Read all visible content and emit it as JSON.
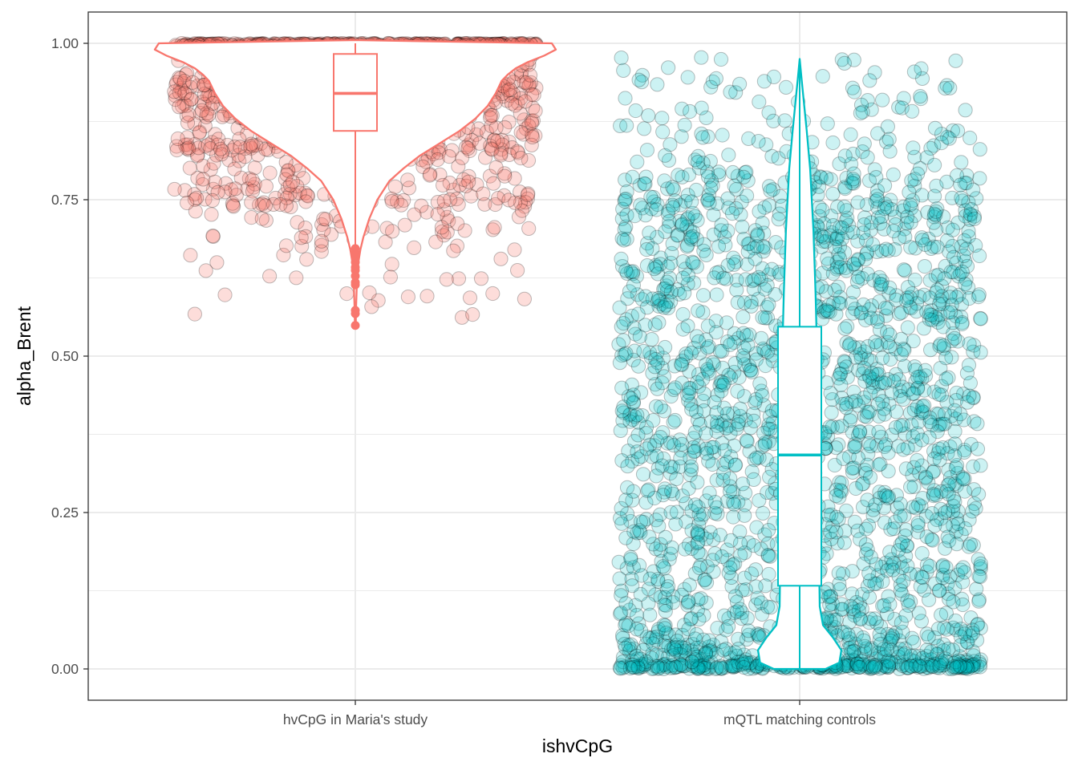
{
  "chart_data": {
    "type": "scatter",
    "subtype": "jitter points with violin and boxplot overlay",
    "title": "",
    "xlabel": "ishvCpG",
    "ylabel": "alpha_Brent",
    "ylim": [
      -0.05,
      1.05
    ],
    "y_ticks": [
      "0.00",
      "0.25",
      "0.50",
      "0.75",
      "1.00"
    ],
    "categories": [
      "hvCpG in Maria's study",
      "mQTL matching controls"
    ],
    "grid": true,
    "legend": "none",
    "series": [
      {
        "category": "hvCpG in Maria's study",
        "color": "#F8766D",
        "point_fill": "#F8766D",
        "point_alpha": 0.25,
        "box": {
          "q1": 0.86,
          "median": 0.92,
          "q3": 0.983,
          "whisker_low": 0.676,
          "whisker_high": 1.0
        },
        "outliers": [
          0.672,
          0.665,
          0.658,
          0.65,
          0.642,
          0.637,
          0.628,
          0.618,
          0.614,
          0.573,
          0.568,
          0.549
        ],
        "violin_profile": [
          [
            0.549,
            0.002
          ],
          [
            0.58,
            0.004
          ],
          [
            0.62,
            0.008
          ],
          [
            0.65,
            0.015
          ],
          [
            0.67,
            0.025
          ],
          [
            0.69,
            0.04
          ],
          [
            0.72,
            0.07
          ],
          [
            0.75,
            0.11
          ],
          [
            0.78,
            0.17
          ],
          [
            0.8,
            0.24
          ],
          [
            0.82,
            0.32
          ],
          [
            0.84,
            0.42
          ],
          [
            0.86,
            0.52
          ],
          [
            0.88,
            0.6
          ],
          [
            0.9,
            0.66
          ],
          [
            0.92,
            0.7
          ],
          [
            0.94,
            0.73
          ],
          [
            0.95,
            0.76
          ],
          [
            0.96,
            0.8
          ],
          [
            0.97,
            0.86
          ],
          [
            0.98,
            0.94
          ],
          [
            0.99,
            1.0
          ],
          [
            1.0,
            0.98
          ],
          [
            1.005,
            0.02
          ]
        ]
      },
      {
        "category": "mQTL matching controls",
        "color": "#00BFC4",
        "point_fill": "#00BFC4",
        "point_alpha": 0.2,
        "box": {
          "q1": 0.133,
          "median": 0.342,
          "q3": 0.547,
          "whisker_low": 0.0,
          "whisker_high": 0.975
        },
        "outliers": [],
        "violin_profile": [
          [
            0.0,
            0.62
          ],
          [
            0.01,
            0.95
          ],
          [
            0.03,
            1.0
          ],
          [
            0.05,
            0.8
          ],
          [
            0.07,
            0.56
          ],
          [
            0.1,
            0.48
          ],
          [
            0.2,
            0.46
          ],
          [
            0.3,
            0.45
          ],
          [
            0.4,
            0.44
          ],
          [
            0.5,
            0.42
          ],
          [
            0.6,
            0.38
          ],
          [
            0.7,
            0.33
          ],
          [
            0.8,
            0.25
          ],
          [
            0.86,
            0.17
          ],
          [
            0.9,
            0.11
          ],
          [
            0.94,
            0.05
          ],
          [
            0.975,
            0.0
          ]
        ]
      }
    ]
  }
}
